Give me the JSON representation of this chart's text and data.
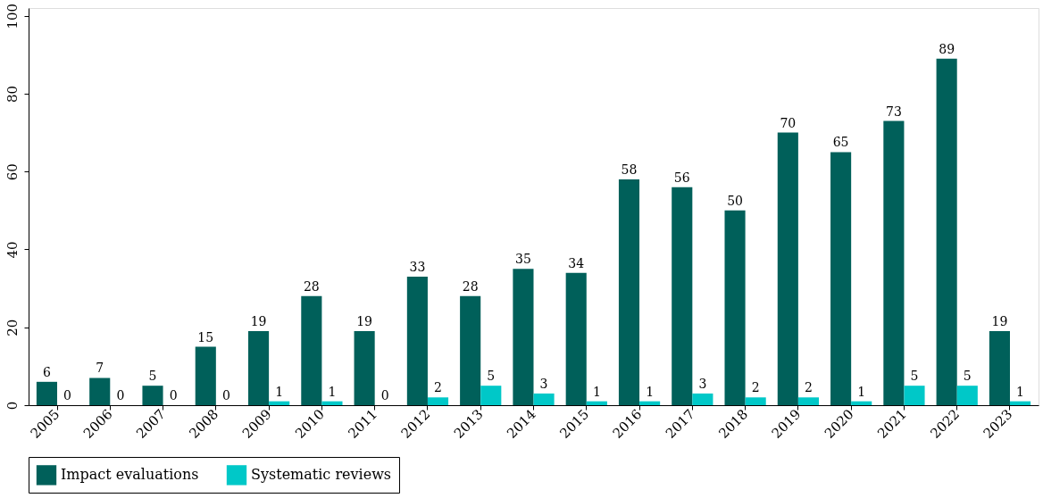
{
  "chart_data": {
    "type": "bar",
    "categories": [
      "2005",
      "2006",
      "2007",
      "2008",
      "2009",
      "2010",
      "2011",
      "2012",
      "2013",
      "2014",
      "2015",
      "2016",
      "2017",
      "2018",
      "2019",
      "2020",
      "2021",
      "2022",
      "2023"
    ],
    "series": [
      {
        "name": "Impact evaluations",
        "color": "#00605a",
        "values": [
          6,
          7,
          5,
          15,
          19,
          28,
          19,
          33,
          28,
          35,
          34,
          58,
          56,
          50,
          70,
          65,
          73,
          89,
          19
        ]
      },
      {
        "name": "Systematic reviews",
        "color": "#00c8c8",
        "values": [
          0,
          0,
          0,
          0,
          1,
          1,
          0,
          2,
          5,
          3,
          1,
          1,
          3,
          2,
          2,
          1,
          5,
          5,
          1
        ]
      }
    ],
    "ylim": [
      0,
      102
    ],
    "yticks": [
      0,
      20,
      40,
      60,
      80,
      100
    ],
    "data_labels": true,
    "grid": false,
    "legend": "bottom"
  }
}
